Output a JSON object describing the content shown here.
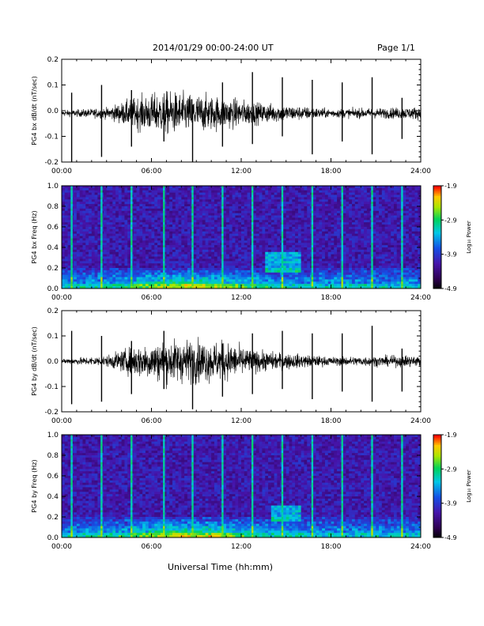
{
  "header": {
    "title": "2014/01/29  00:00-24:00 UT",
    "page": "Page 1/1"
  },
  "xaxis_label": "Universal Time (hh:mm)",
  "colorbar": {
    "label": "Log₁₀ Power",
    "ticks": [
      "-1.9",
      "-2.9",
      "-3.9",
      "-4.9"
    ],
    "range": [
      -4.9,
      -1.9
    ]
  },
  "chart_data": [
    {
      "type": "line",
      "ylabel": "PG4 bx dB/dt (nT/sec)",
      "xlim": [
        "00:00",
        "24:00"
      ],
      "xticks": [
        "00:00",
        "06:00",
        "12:00",
        "18:00",
        "24:00"
      ],
      "ylim": [
        -0.2,
        0.2
      ],
      "yticks": [
        "0.2",
        "0.1",
        "0.0",
        "-0.1",
        "-0.2"
      ],
      "baseline": -0.01,
      "spikes": [
        {
          "t": "00:40",
          "max": 0.07,
          "min": -0.2
        },
        {
          "t": "02:40",
          "max": 0.1,
          "min": -0.18
        },
        {
          "t": "04:40",
          "max": 0.08,
          "min": -0.14
        },
        {
          "t": "06:50",
          "max": 0.03,
          "min": -0.12
        },
        {
          "t": "08:45",
          "max": 0.02,
          "min": -0.2
        },
        {
          "t": "10:45",
          "max": 0.11,
          "min": -0.14
        },
        {
          "t": "12:45",
          "max": 0.15,
          "min": -0.13
        },
        {
          "t": "14:45",
          "max": 0.13,
          "min": -0.1
        },
        {
          "t": "16:45",
          "max": 0.12,
          "min": -0.17
        },
        {
          "t": "18:45",
          "max": 0.11,
          "min": -0.12
        },
        {
          "t": "20:45",
          "max": 0.13,
          "min": -0.17
        },
        {
          "t": "22:45",
          "max": 0.05,
          "min": -0.11
        }
      ],
      "noise_amplitude_envelope": [
        {
          "t": "00:00",
          "amp": 0.005
        },
        {
          "t": "03:00",
          "amp": 0.01
        },
        {
          "t": "05:00",
          "amp": 0.03
        },
        {
          "t": "07:00",
          "amp": 0.04
        },
        {
          "t": "09:00",
          "amp": 0.035
        },
        {
          "t": "11:00",
          "amp": 0.03
        },
        {
          "t": "13:00",
          "amp": 0.02
        },
        {
          "t": "15:00",
          "amp": 0.015
        },
        {
          "t": "18:00",
          "amp": 0.008
        },
        {
          "t": "22:00",
          "amp": 0.01
        },
        {
          "t": "24:00",
          "amp": 0.012
        }
      ]
    },
    {
      "type": "heatmap",
      "ylabel": "PG4 bx Freq (Hz)",
      "xlim": [
        "00:00",
        "24:00"
      ],
      "xticks": [
        "00:00",
        "06:00",
        "12:00",
        "18:00",
        "24:00"
      ],
      "ylim": [
        0.0,
        1.0
      ],
      "yticks": [
        "1.0",
        "0.8",
        "0.6",
        "0.4",
        "0.2",
        "0.0"
      ],
      "zlabel": "Log₁₀ Power",
      "zlim": [
        -4.9,
        -1.9
      ],
      "vertical_lines_t": [
        "00:40",
        "02:40",
        "04:40",
        "06:50",
        "08:45",
        "10:45",
        "12:45",
        "14:45",
        "16:45",
        "18:45",
        "20:45",
        "22:45"
      ],
      "enhancement_patch": {
        "t_range": [
          "13:30",
          "16:00"
        ],
        "f_range": [
          0.15,
          0.35
        ]
      }
    },
    {
      "type": "line",
      "ylabel": "PG4 by dB/dt (nT/sec)",
      "xlim": [
        "00:00",
        "24:00"
      ],
      "xticks": [
        "00:00",
        "06:00",
        "12:00",
        "18:00",
        "24:00"
      ],
      "ylim": [
        -0.2,
        0.2
      ],
      "yticks": [
        "0.2",
        "0.1",
        "0.0",
        "-0.1",
        "-0.2"
      ],
      "baseline": 0.0,
      "spikes": [
        {
          "t": "00:40",
          "max": 0.12,
          "min": -0.17
        },
        {
          "t": "02:40",
          "max": 0.1,
          "min": -0.16
        },
        {
          "t": "04:40",
          "max": 0.08,
          "min": -0.13
        },
        {
          "t": "06:50",
          "max": 0.12,
          "min": -0.11
        },
        {
          "t": "08:45",
          "max": 0.03,
          "min": -0.19
        },
        {
          "t": "10:45",
          "max": 0.07,
          "min": -0.14
        },
        {
          "t": "12:45",
          "max": 0.11,
          "min": -0.13
        },
        {
          "t": "14:45",
          "max": 0.12,
          "min": -0.11
        },
        {
          "t": "16:45",
          "max": 0.11,
          "min": -0.15
        },
        {
          "t": "18:45",
          "max": 0.11,
          "min": -0.12
        },
        {
          "t": "20:45",
          "max": 0.14,
          "min": -0.16
        },
        {
          "t": "22:45",
          "max": 0.05,
          "min": -0.12
        }
      ],
      "noise_amplitude_envelope": [
        {
          "t": "00:00",
          "amp": 0.005
        },
        {
          "t": "03:00",
          "amp": 0.01
        },
        {
          "t": "05:00",
          "amp": 0.03
        },
        {
          "t": "07:00",
          "amp": 0.04
        },
        {
          "t": "09:00",
          "amp": 0.04
        },
        {
          "t": "11:00",
          "amp": 0.035
        },
        {
          "t": "13:00",
          "amp": 0.02
        },
        {
          "t": "15:00",
          "amp": 0.015
        },
        {
          "t": "18:00",
          "amp": 0.008
        },
        {
          "t": "22:00",
          "amp": 0.01
        },
        {
          "t": "24:00",
          "amp": 0.012
        }
      ]
    },
    {
      "type": "heatmap",
      "ylabel": "PG4 by Freq (Hz)",
      "xlim": [
        "00:00",
        "24:00"
      ],
      "xticks": [
        "00:00",
        "06:00",
        "12:00",
        "18:00",
        "24:00"
      ],
      "ylim": [
        0.0,
        1.0
      ],
      "yticks": [
        "1.0",
        "0.8",
        "0.6",
        "0.4",
        "0.2",
        "0.0"
      ],
      "zlabel": "Log₁₀ Power",
      "zlim": [
        -4.9,
        -1.9
      ],
      "vertical_lines_t": [
        "00:40",
        "02:40",
        "04:40",
        "06:50",
        "08:45",
        "10:45",
        "12:45",
        "14:45",
        "16:45",
        "18:45",
        "20:45",
        "22:45"
      ],
      "enhancement_patch": {
        "t_range": [
          "14:00",
          "16:00"
        ],
        "f_range": [
          0.15,
          0.32
        ]
      }
    }
  ]
}
